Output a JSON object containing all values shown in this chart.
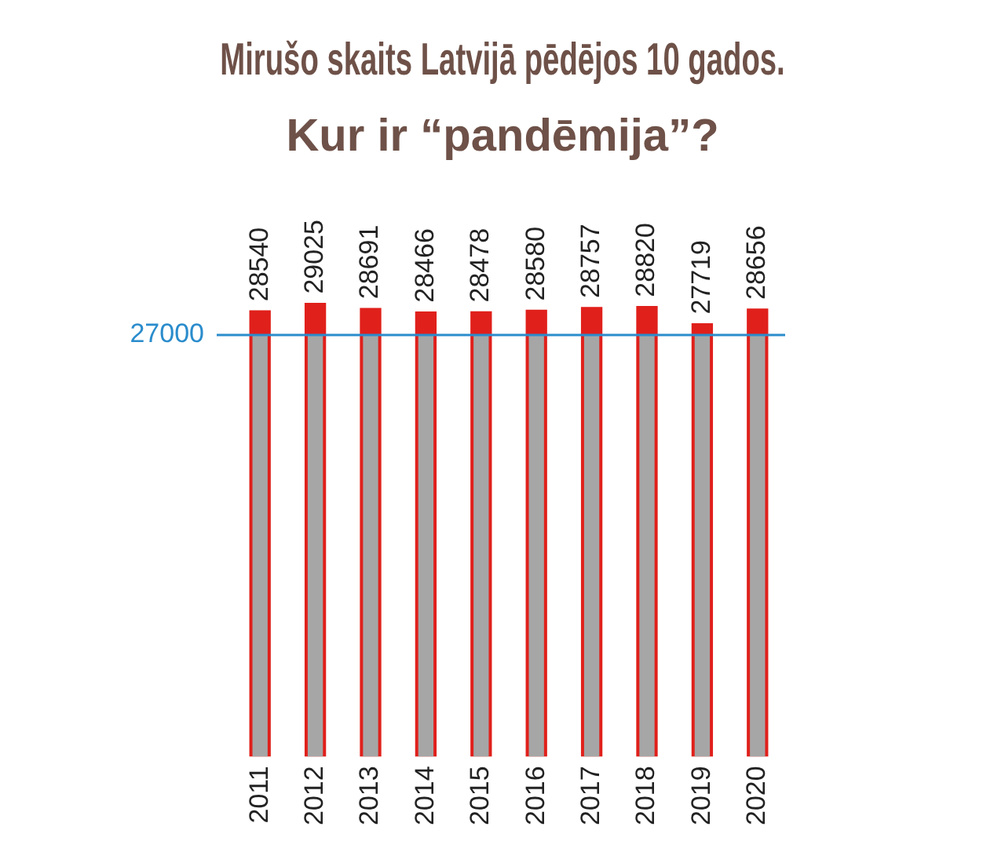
{
  "chart_data": {
    "type": "bar",
    "title": "Mirušo skaits Latvijā pēdējos 10 gados.",
    "subtitle": "Kur ir “pandēmija”?",
    "categories": [
      "2011",
      "2012",
      "2013",
      "2014",
      "2015",
      "2016",
      "2017",
      "2018",
      "2019",
      "2020"
    ],
    "series": [
      {
        "color": "#e0201b",
        "values": [
          28540,
          29025,
          28691,
          28466,
          28478,
          28580,
          28757,
          28820,
          27719,
          28656
        ],
        "value_labels": [
          "28540",
          "29025",
          "28691",
          "28466",
          "28478",
          "28580",
          "28757",
          "28820",
          "27719",
          "28656"
        ]
      },
      {
        "color": "#a6a6a6",
        "values": [
          27000,
          27000,
          27000,
          27000,
          27000,
          27000,
          27000,
          27000,
          27000,
          27000
        ]
      }
    ],
    "ref_lines": [
      {
        "axis": "y",
        "value": 27000,
        "label": "27000",
        "color": "#2a8ccc"
      }
    ],
    "tick_labels": "x",
    "grid": false,
    "legend": false
  }
}
